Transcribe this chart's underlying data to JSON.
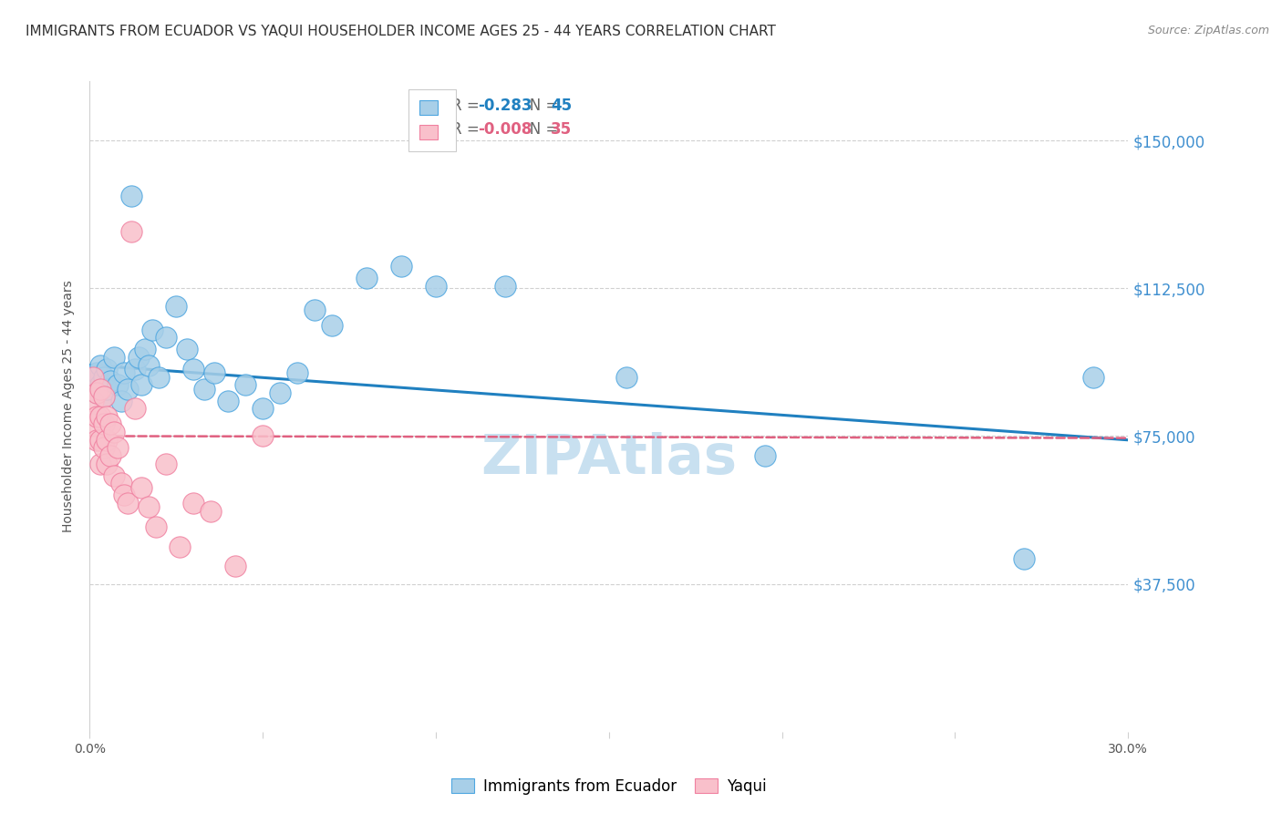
{
  "title": "IMMIGRANTS FROM ECUADOR VS YAQUI HOUSEHOLDER INCOME AGES 25 - 44 YEARS CORRELATION CHART",
  "source": "Source: ZipAtlas.com",
  "ylabel": "Householder Income Ages 25 - 44 years",
  "ytick_labels": [
    "$37,500",
    "$75,000",
    "$112,500",
    "$150,000"
  ],
  "ytick_values": [
    37500,
    75000,
    112500,
    150000
  ],
  "ylim": [
    0,
    165000
  ],
  "xlim": [
    0.0,
    0.3
  ],
  "legend_blue_r": "-0.283",
  "legend_blue_n": "45",
  "legend_pink_r": "-0.008",
  "legend_pink_n": "35",
  "legend_label_blue": "Immigrants from Ecuador",
  "legend_label_pink": "Yaqui",
  "blue_fill": "#a8cfe8",
  "pink_fill": "#f9c0cb",
  "blue_edge": "#4da6e0",
  "pink_edge": "#f080a0",
  "blue_line_color": "#2080c0",
  "pink_line_color": "#e06080",
  "watermark": "ZIPAtlas",
  "watermark_color": "#c8e0f0",
  "blue_points_x": [
    0.001,
    0.001,
    0.002,
    0.002,
    0.003,
    0.003,
    0.004,
    0.004,
    0.005,
    0.005,
    0.006,
    0.007,
    0.008,
    0.009,
    0.01,
    0.011,
    0.012,
    0.013,
    0.014,
    0.015,
    0.016,
    0.017,
    0.018,
    0.02,
    0.022,
    0.025,
    0.028,
    0.03,
    0.033,
    0.036,
    0.04,
    0.045,
    0.05,
    0.055,
    0.06,
    0.065,
    0.07,
    0.08,
    0.09,
    0.1,
    0.12,
    0.155,
    0.195,
    0.27,
    0.29
  ],
  "blue_points_y": [
    90000,
    87000,
    91000,
    86000,
    93000,
    88000,
    90000,
    85000,
    92000,
    87000,
    89000,
    95000,
    88000,
    84000,
    91000,
    87000,
    136000,
    92000,
    95000,
    88000,
    97000,
    93000,
    102000,
    90000,
    100000,
    108000,
    97000,
    92000,
    87000,
    91000,
    84000,
    88000,
    82000,
    86000,
    91000,
    107000,
    103000,
    115000,
    118000,
    113000,
    113000,
    90000,
    70000,
    44000,
    90000
  ],
  "pink_points_x": [
    0.001,
    0.001,
    0.001,
    0.002,
    0.002,
    0.002,
    0.003,
    0.003,
    0.003,
    0.003,
    0.004,
    0.004,
    0.004,
    0.005,
    0.005,
    0.005,
    0.006,
    0.006,
    0.007,
    0.007,
    0.008,
    0.009,
    0.01,
    0.011,
    0.012,
    0.013,
    0.015,
    0.017,
    0.019,
    0.022,
    0.026,
    0.03,
    0.035,
    0.042,
    0.05
  ],
  "pink_points_y": [
    90000,
    84000,
    78000,
    86000,
    80000,
    74000,
    87000,
    80000,
    74000,
    68000,
    85000,
    78000,
    72000,
    80000,
    74000,
    68000,
    78000,
    70000,
    76000,
    65000,
    72000,
    63000,
    60000,
    58000,
    127000,
    82000,
    62000,
    57000,
    52000,
    68000,
    47000,
    58000,
    56000,
    42000,
    75000
  ],
  "blue_trendline_x": [
    0.0,
    0.3
  ],
  "blue_trendline_y": [
    93000,
    74000
  ],
  "pink_trendline_x": [
    0.0,
    0.3
  ],
  "pink_trendline_y": [
    75000,
    74500
  ],
  "grid_color": "#d0d0d0",
  "bg_color": "#ffffff",
  "title_fontsize": 11,
  "axis_label_fontsize": 10,
  "tick_fontsize": 10,
  "legend_fontsize": 12,
  "ytick_color": "#4090d0",
  "xtick_color": "#555555",
  "source_color": "#888888"
}
